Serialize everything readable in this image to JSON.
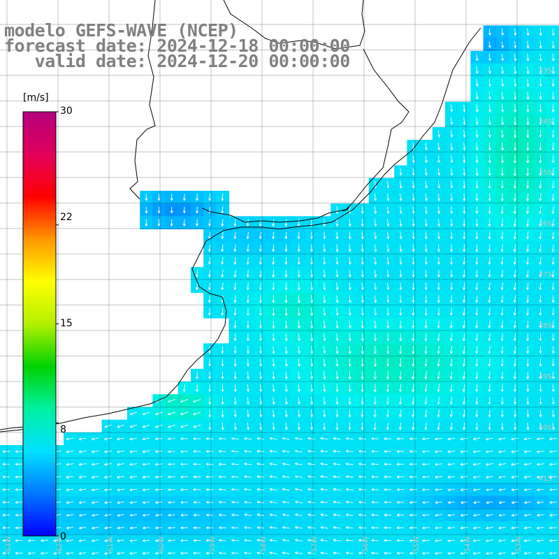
{
  "title": {
    "model": "modelo GEFS-WAVE (NCEP)",
    "forecast": "forecast date: 2024-12-18 00:00:00",
    "valid": "   valid date: 2024-12-20 00:00:00"
  },
  "colorbar": {
    "unit": "[m/s]",
    "ticks": [
      "30",
      "22",
      "15",
      "8",
      "0"
    ],
    "tick_values": [
      30,
      22,
      15,
      8,
      0
    ],
    "colors": [
      "#0000ff",
      "#0078ff",
      "#00e1ff",
      "#00f0a0",
      "#00d200",
      "#b4f000",
      "#ffff00",
      "#ff9600",
      "#ff0000",
      "#e1005a",
      "#b4007d"
    ]
  },
  "lat_labels": [
    "33S",
    "34S",
    "35S",
    "36S",
    "37S",
    "38S",
    "39S",
    "40S",
    "41S"
  ],
  "lon_labels": [
    "63W",
    "62W",
    "61W",
    "60W",
    "59W",
    "58W",
    "57W",
    "56W",
    "55W",
    "54W",
    "53W"
  ],
  "colors": {
    "land": "#ffffff",
    "grid": "#000000",
    "coast": "#000000",
    "arrow": "#ffffff",
    "title": "#808080"
  }
}
